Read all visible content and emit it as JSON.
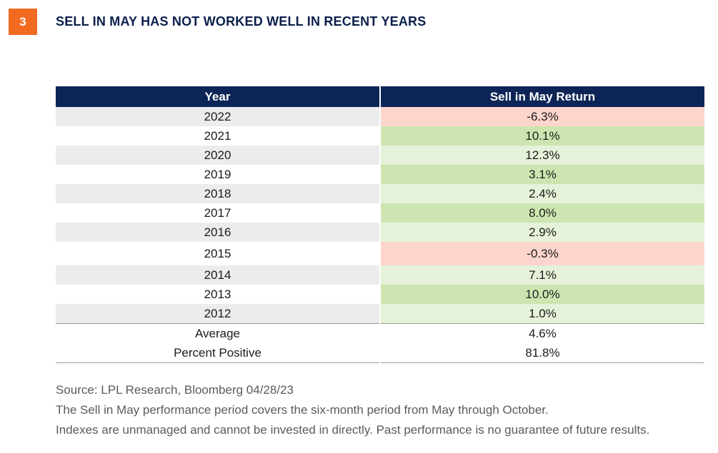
{
  "figure": {
    "number": "3",
    "title": "SELL IN MAY HAS NOT WORKED WELL IN RECENT YEARS"
  },
  "chart_data": {
    "type": "table",
    "columns": [
      "Year",
      "Sell in May Return"
    ],
    "rows": [
      {
        "year": "2022",
        "return": "-6.3%",
        "value": -6.3,
        "status": "neg"
      },
      {
        "year": "2021",
        "return": "10.1%",
        "value": 10.1,
        "status": "pos-strong"
      },
      {
        "year": "2020",
        "return": "12.3%",
        "value": 12.3,
        "status": "pos-light"
      },
      {
        "year": "2019",
        "return": "3.1%",
        "value": 3.1,
        "status": "pos-strong"
      },
      {
        "year": "2018",
        "return": "2.4%",
        "value": 2.4,
        "status": "pos-light"
      },
      {
        "year": "2017",
        "return": "8.0%",
        "value": 8.0,
        "status": "pos-strong"
      },
      {
        "year": "2016",
        "return": "2.9%",
        "value": 2.9,
        "status": "pos-light"
      },
      {
        "year": "2015",
        "return": "-0.3%",
        "value": -0.3,
        "status": "neg"
      },
      {
        "year": "2014",
        "return": "7.1%",
        "value": 7.1,
        "status": "pos-light"
      },
      {
        "year": "2013",
        "return": "10.0%",
        "value": 10.0,
        "status": "pos-strong"
      },
      {
        "year": "2012",
        "return": "1.0%",
        "value": 1.0,
        "status": "pos-light"
      }
    ],
    "summary": [
      {
        "label": "Average",
        "value": "4.6%"
      },
      {
        "label": "Percent Positive",
        "value": "81.8%"
      }
    ],
    "colors": {
      "header": "#0d2556",
      "negative": "#fdd5cd",
      "positive_strong": "#cde6b1",
      "positive_light": "#e5f1d8",
      "badge": "#f26b21"
    }
  },
  "notes": [
    "Source: LPL Research, Bloomberg  04/28/23",
    "The Sell in May performance period covers the six-month period from May through October.",
    "Indexes are unmanaged and cannot be invested in directly. Past performance is no guarantee of future results."
  ]
}
